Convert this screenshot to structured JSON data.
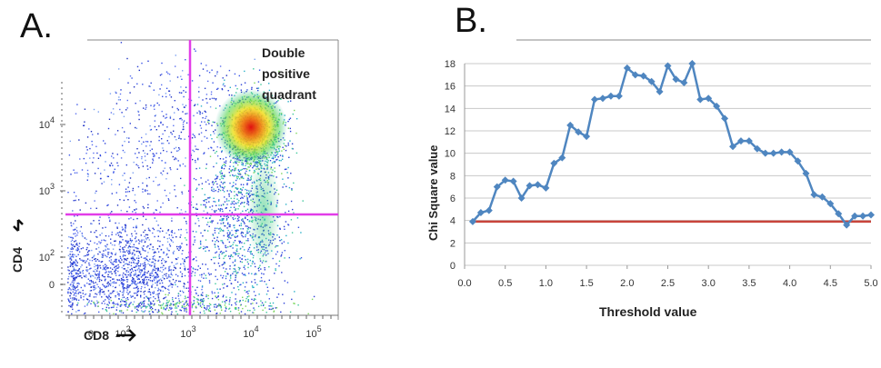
{
  "panels": {
    "a_label": "A.",
    "b_label": "B."
  },
  "flow_plot": {
    "quadrant_label_lines": [
      "Double",
      "positive",
      "quadrant"
    ],
    "x_axis_label": "CD8",
    "y_axis_label": "CD4",
    "x_ticks": [
      {
        "base": "0",
        "exp": ""
      },
      {
        "base": "10",
        "exp": "2"
      },
      {
        "base": "10",
        "exp": "3"
      },
      {
        "base": "10",
        "exp": "4"
      },
      {
        "base": "10",
        "exp": "5"
      }
    ],
    "y_ticks": [
      {
        "base": "0",
        "exp": ""
      },
      {
        "base": "10",
        "exp": "2"
      },
      {
        "base": "10",
        "exp": "3"
      },
      {
        "base": "10",
        "exp": "4"
      }
    ],
    "gate_color": "#e23ce8"
  },
  "chart_data": {
    "type": "line",
    "xlabel": "Threshold value",
    "ylabel": "Chi Square value",
    "xlim": [
      0,
      5.0
    ],
    "ylim": [
      0,
      18
    ],
    "x_ticks": [
      "0.0",
      "0.5",
      "1.0",
      "1.5",
      "2.0",
      "2.5",
      "3.0",
      "3.5",
      "4.0",
      "4.5",
      "5.0"
    ],
    "y_ticks": [
      "0",
      "2",
      "4",
      "6",
      "8",
      "10",
      "12",
      "14",
      "16",
      "18"
    ],
    "grid": "horizontal",
    "series": [
      {
        "color": "#4f86c0",
        "x": [
          0.1,
          0.2,
          0.3,
          0.4,
          0.5,
          0.6,
          0.7,
          0.8,
          0.9,
          1.0,
          1.1,
          1.2,
          1.3,
          1.4,
          1.5,
          1.6,
          1.7,
          1.8,
          1.9,
          2.0,
          2.1,
          2.2,
          2.3,
          2.4,
          2.5,
          2.6,
          2.7,
          2.8,
          2.9,
          3.0,
          3.1,
          3.2,
          3.3,
          3.4,
          3.5,
          3.6,
          3.7,
          3.8,
          3.9,
          4.0,
          4.1,
          4.2,
          4.3,
          4.4,
          4.5,
          4.6,
          4.7,
          4.8,
          4.9,
          5.0
        ],
        "y": [
          3.9,
          4.7,
          4.9,
          7.0,
          7.6,
          7.5,
          6.0,
          7.1,
          7.2,
          6.9,
          9.1,
          9.6,
          12.5,
          11.9,
          11.5,
          14.8,
          14.9,
          15.1,
          15.1,
          17.6,
          17.0,
          16.9,
          16.4,
          15.5,
          17.8,
          16.6,
          16.3,
          18.0,
          14.8,
          14.9,
          14.2,
          13.1,
          10.6,
          11.1,
          11.1,
          10.4,
          10.0,
          10.0,
          10.1,
          10.1,
          9.3,
          8.2,
          6.3,
          6.1,
          5.5,
          4.6,
          3.6,
          4.4,
          4.4,
          4.5
        ]
      }
    ],
    "reference_line": {
      "y": 3.9,
      "color": "#c9453c"
    }
  }
}
